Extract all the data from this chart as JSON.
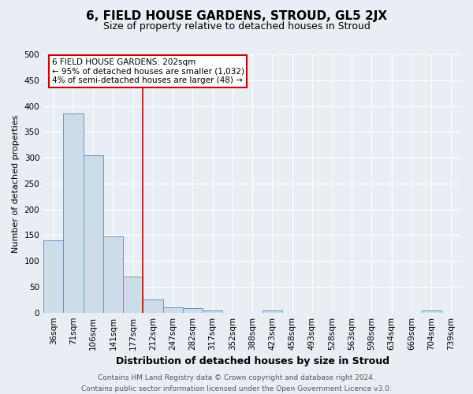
{
  "title": "6, FIELD HOUSE GARDENS, STROUD, GL5 2JX",
  "subtitle": "Size of property relative to detached houses in Stroud",
  "xlabel": "Distribution of detached houses by size in Stroud",
  "ylabel": "Number of detached properties",
  "bar_labels": [
    "36sqm",
    "71sqm",
    "106sqm",
    "141sqm",
    "177sqm",
    "212sqm",
    "247sqm",
    "282sqm",
    "317sqm",
    "352sqm",
    "388sqm",
    "423sqm",
    "458sqm",
    "493sqm",
    "528sqm",
    "563sqm",
    "598sqm",
    "634sqm",
    "669sqm",
    "704sqm",
    "739sqm"
  ],
  "bar_values": [
    140,
    385,
    305,
    148,
    70,
    25,
    10,
    9,
    4,
    0,
    0,
    4,
    0,
    0,
    0,
    0,
    0,
    0,
    0,
    4,
    0
  ],
  "bar_color": "#ccdce8",
  "bar_edge_color": "#6699bb",
  "subject_line_color": "#cc0000",
  "subject_line_index": 5,
  "annotation_text": "6 FIELD HOUSE GARDENS: 202sqm\n← 95% of detached houses are smaller (1,032)\n4% of semi-detached houses are larger (48) →",
  "annotation_box_facecolor": "#ffffff",
  "annotation_box_edgecolor": "#cc0000",
  "footer_line1": "Contains HM Land Registry data © Crown copyright and database right 2024.",
  "footer_line2": "Contains public sector information licensed under the Open Government Licence v3.0.",
  "ylim": [
    0,
    500
  ],
  "yticks": [
    0,
    50,
    100,
    150,
    200,
    250,
    300,
    350,
    400,
    450,
    500
  ],
  "background_color": "#e8eef4",
  "grid_color": "#ffffff",
  "title_fontsize": 11,
  "subtitle_fontsize": 9,
  "xlabel_fontsize": 9,
  "ylabel_fontsize": 8,
  "tick_fontsize": 7.5,
  "footer_fontsize": 6.5
}
